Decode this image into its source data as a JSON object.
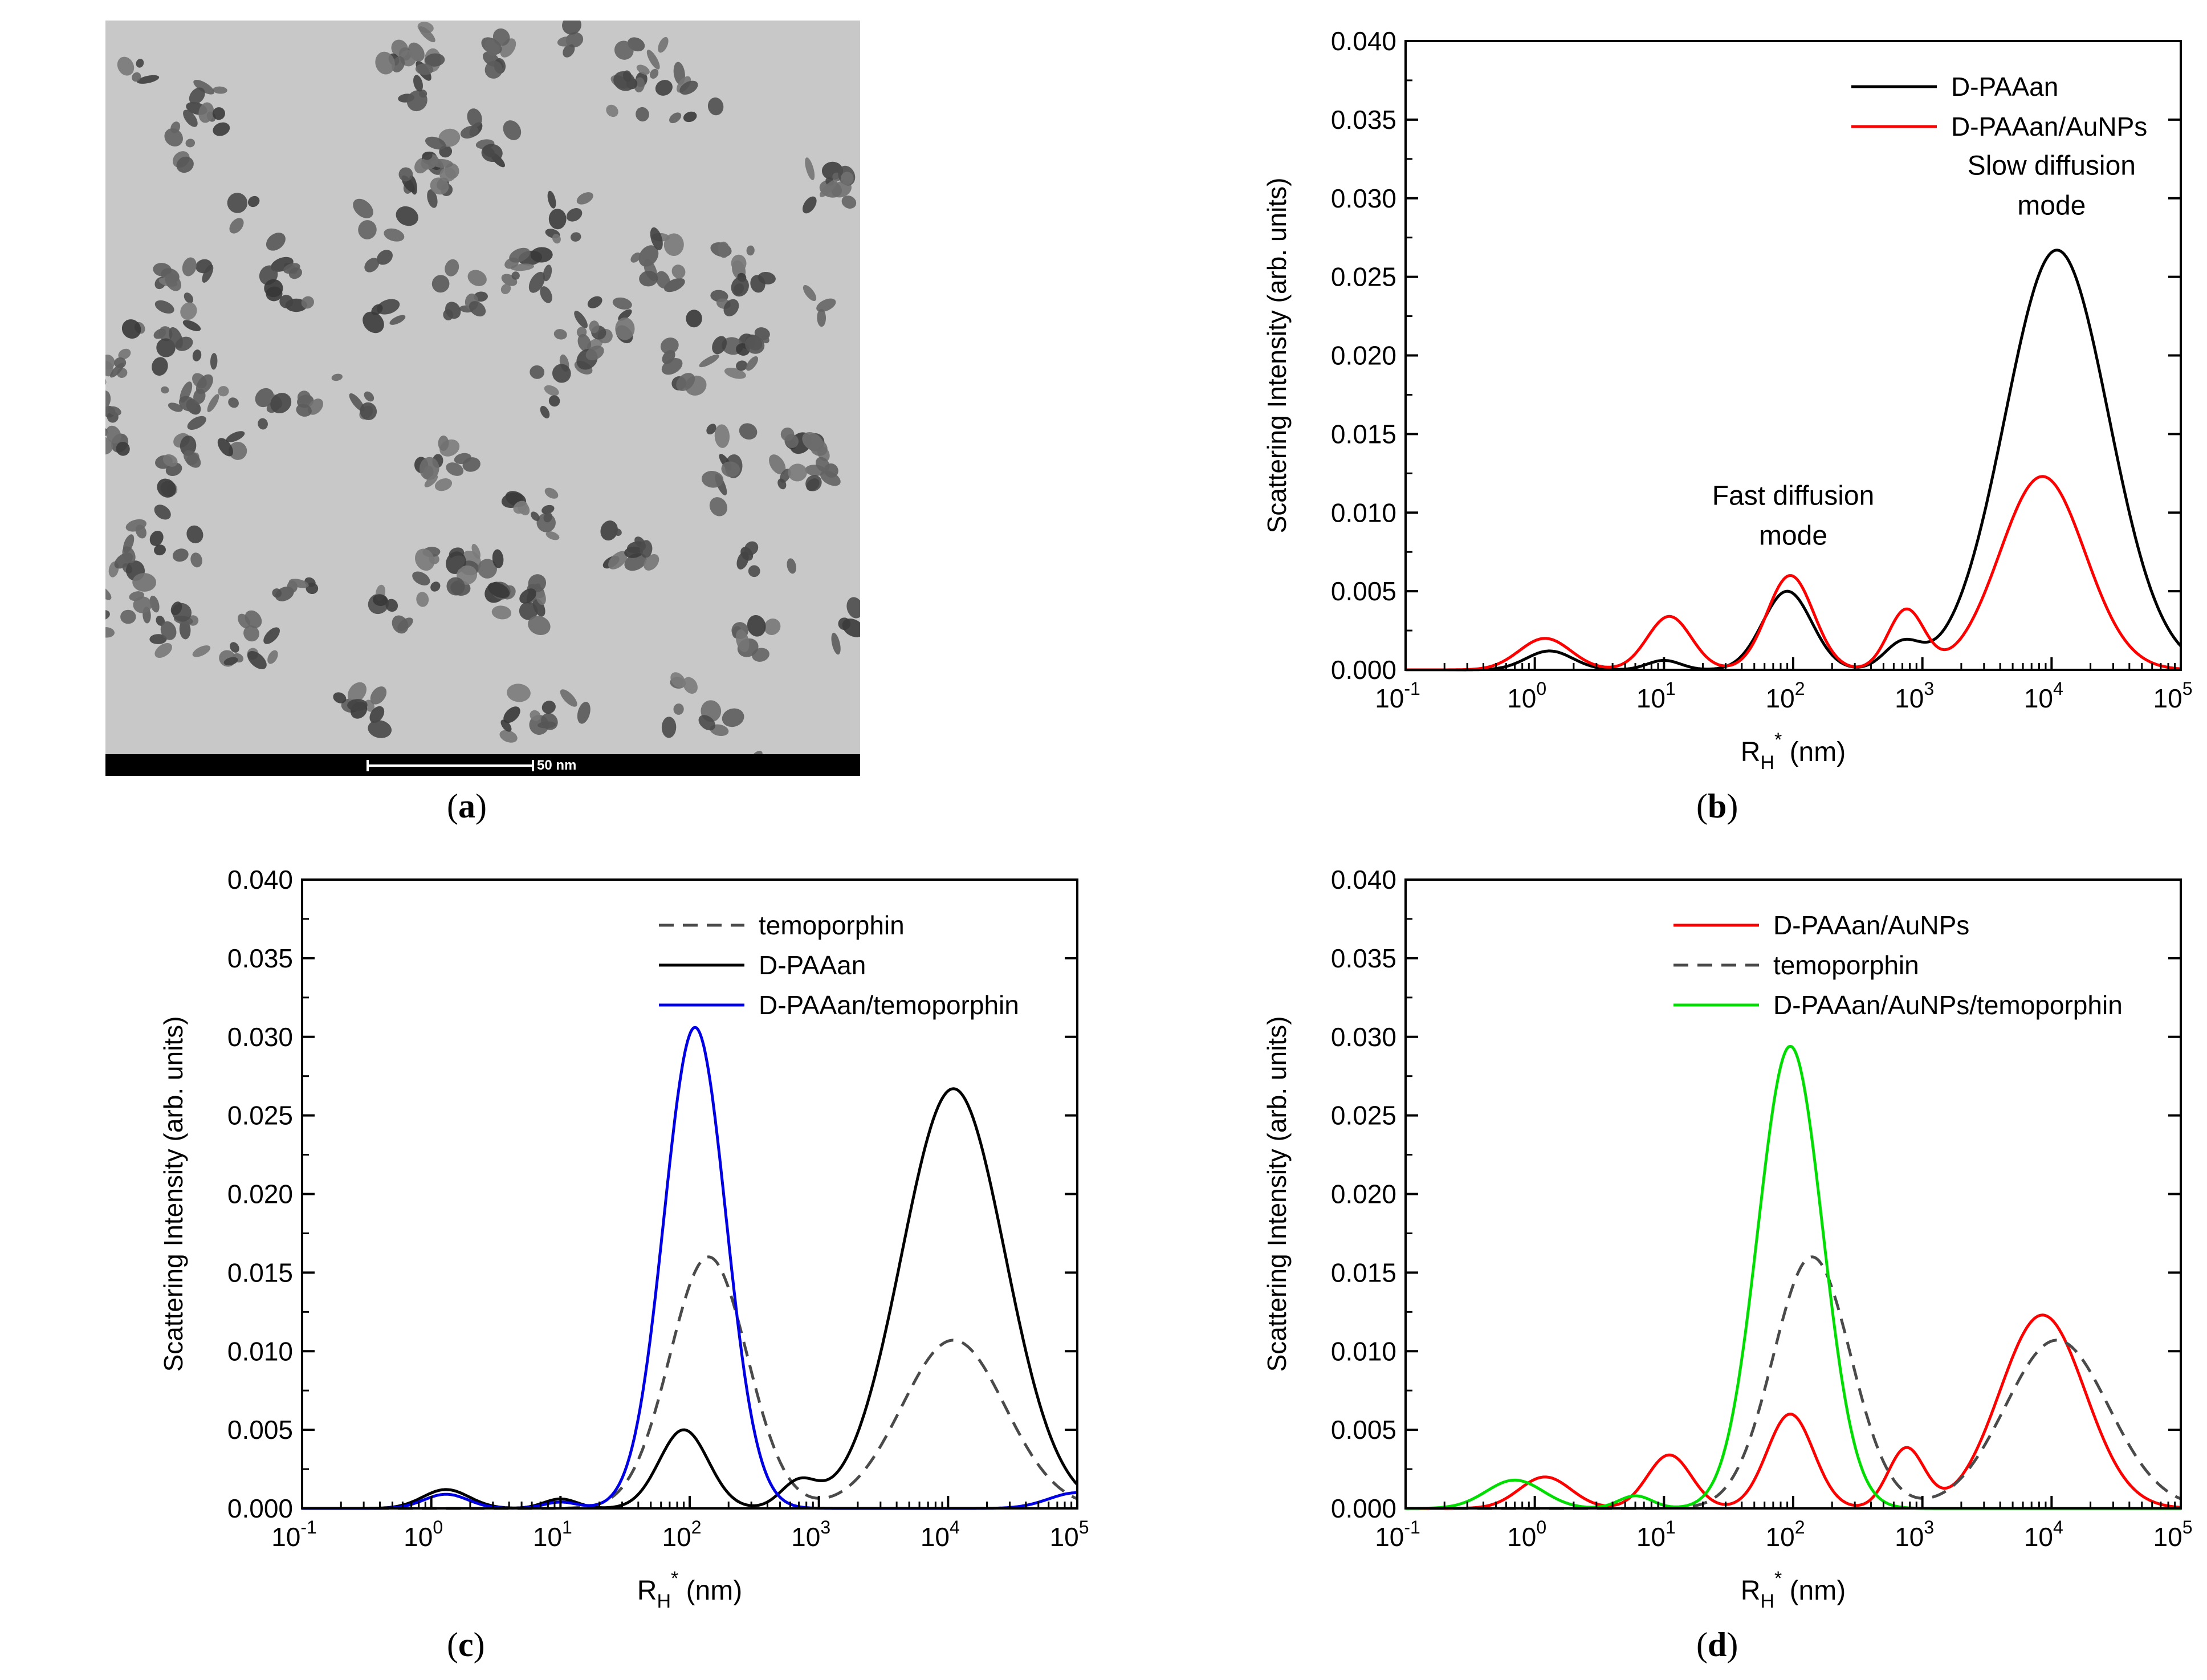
{
  "panels": {
    "a": {
      "caption": "a",
      "scale_bar_label": "50 nm"
    },
    "b": {
      "caption": "b"
    },
    "c": {
      "caption": "c"
    },
    "d": {
      "caption": "d"
    }
  },
  "colors": {
    "black": "#000000",
    "red": "#ff0000",
    "blue": "#0000e6",
    "green": "#00dd00",
    "gray_dash": "#4a4a4a"
  },
  "chart_data": [
    {
      "id": "b",
      "type": "line",
      "xscale": "log",
      "xlim": [
        0.1,
        100000
      ],
      "ylim": [
        0,
        0.04
      ],
      "xlabel": "RH* (nm)",
      "xlabel_main": "R",
      "xlabel_sub": "H",
      "xlabel_sup": "*",
      "xlabel_unit": " (nm)",
      "ylabel": "Scattering Intensity (arb. units)",
      "xticks": [
        {
          "base": "10",
          "exp": "-1"
        },
        {
          "base": "10",
          "exp": "0"
        },
        {
          "base": "10",
          "exp": "1"
        },
        {
          "base": "10",
          "exp": "2"
        },
        {
          "base": "10",
          "exp": "3"
        },
        {
          "base": "10",
          "exp": "4"
        },
        {
          "base": "10",
          "exp": "5"
        }
      ],
      "yticks": [
        "0.000",
        "0.005",
        "0.010",
        "0.015",
        "0.020",
        "0.025",
        "0.030",
        "0.035",
        "0.040"
      ],
      "legend": {
        "position": "top-right"
      },
      "annotations": [
        {
          "lines": [
            "Fast diffusion",
            "mode"
          ],
          "x": 100,
          "y": 0.0105
        },
        {
          "lines": [
            "Slow diffusion",
            "mode"
          ],
          "x": 10000,
          "y": 0.0315
        }
      ],
      "series": [
        {
          "name": "D-PAAan",
          "color": "#000000",
          "dash": false,
          "peaks": [
            [
              1.3,
              0.0012,
              0.18
            ],
            [
              10,
              0.0006,
              0.13
            ],
            [
              90,
              0.005,
              0.19
            ],
            [
              700,
              0.0016,
              0.14
            ],
            [
              11000,
              0.0267,
              0.4
            ]
          ]
        },
        {
          "name": "D-PAAan/AuNPs",
          "color": "#ff0000",
          "dash": false,
          "peaks": [
            [
              1.2,
              0.002,
              0.2
            ],
            [
              11,
              0.0034,
              0.17
            ],
            [
              95,
              0.006,
              0.18
            ],
            [
              750,
              0.0038,
              0.14
            ],
            [
              8500,
              0.0123,
              0.33
            ]
          ]
        }
      ]
    },
    {
      "id": "c",
      "type": "line",
      "xscale": "log",
      "xlim": [
        0.1,
        100000
      ],
      "ylim": [
        0,
        0.04
      ],
      "xlabel": "RH* (nm)",
      "xlabel_main": "R",
      "xlabel_sub": "H",
      "xlabel_sup": "*",
      "xlabel_unit": " (nm)",
      "ylabel": "Scattering Intensity (arb. units)",
      "xticks": [
        {
          "base": "10",
          "exp": "-1"
        },
        {
          "base": "10",
          "exp": "0"
        },
        {
          "base": "10",
          "exp": "1"
        },
        {
          "base": "10",
          "exp": "2"
        },
        {
          "base": "10",
          "exp": "3"
        },
        {
          "base": "10",
          "exp": "4"
        },
        {
          "base": "10",
          "exp": "5"
        }
      ],
      "yticks": [
        "0.000",
        "0.005",
        "0.010",
        "0.015",
        "0.020",
        "0.025",
        "0.030",
        "0.035",
        "0.040"
      ],
      "legend": {
        "position": "top-right"
      },
      "annotations": [],
      "series": [
        {
          "name": "temoporphin",
          "color": "#4a4a4a",
          "dash": true,
          "peaks": [
            [
              140,
              0.016,
              0.3
            ],
            [
              11000,
              0.0107,
              0.4
            ]
          ]
        },
        {
          "name": "D-PAAan",
          "color": "#000000",
          "dash": false,
          "peaks": [
            [
              1.3,
              0.0012,
              0.18
            ],
            [
              10,
              0.0006,
              0.13
            ],
            [
              90,
              0.005,
              0.19
            ],
            [
              700,
              0.0016,
              0.14
            ],
            [
              11000,
              0.0267,
              0.4
            ]
          ]
        },
        {
          "name": "D-PAAan/temoporphin",
          "color": "#0000e6",
          "dash": false,
          "peaks": [
            [
              1.3,
              0.0009,
              0.17
            ],
            [
              10,
              0.0004,
              0.13
            ],
            [
              110,
              0.0306,
              0.24
            ],
            [
              100000,
              0.001,
              0.22
            ]
          ]
        }
      ]
    },
    {
      "id": "d",
      "type": "line",
      "xscale": "log",
      "xlim": [
        0.1,
        100000
      ],
      "ylim": [
        0,
        0.04
      ],
      "xlabel": "RH* (nm)",
      "xlabel_main": "R",
      "xlabel_sub": "H",
      "xlabel_sup": "*",
      "xlabel_unit": " (nm)",
      "ylabel": "Scattering Intensity (arb. units)",
      "xticks": [
        {
          "base": "10",
          "exp": "-1"
        },
        {
          "base": "10",
          "exp": "0"
        },
        {
          "base": "10",
          "exp": "1"
        },
        {
          "base": "10",
          "exp": "2"
        },
        {
          "base": "10",
          "exp": "3"
        },
        {
          "base": "10",
          "exp": "4"
        },
        {
          "base": "10",
          "exp": "5"
        }
      ],
      "yticks": [
        "0.000",
        "0.005",
        "0.010",
        "0.015",
        "0.020",
        "0.025",
        "0.030",
        "0.035",
        "0.040"
      ],
      "legend": {
        "position": "top-right"
      },
      "annotations": [],
      "series": [
        {
          "name": "D-PAAan/AuNPs",
          "color": "#ff0000",
          "dash": false,
          "peaks": [
            [
              1.2,
              0.002,
              0.2
            ],
            [
              11,
              0.0034,
              0.17
            ],
            [
              95,
              0.006,
              0.18
            ],
            [
              750,
              0.0038,
              0.14
            ],
            [
              8500,
              0.0123,
              0.33
            ]
          ]
        },
        {
          "name": "temoporphin",
          "color": "#4a4a4a",
          "dash": true,
          "peaks": [
            [
              140,
              0.016,
              0.3
            ],
            [
              11000,
              0.0107,
              0.4
            ]
          ]
        },
        {
          "name": "D-PAAan/AuNPs/temoporphin",
          "color": "#00dd00",
          "dash": false,
          "peaks": [
            [
              0.7,
              0.0018,
              0.22
            ],
            [
              6,
              0.0008,
              0.13
            ],
            [
              95,
              0.0294,
              0.25
            ]
          ]
        }
      ]
    }
  ]
}
